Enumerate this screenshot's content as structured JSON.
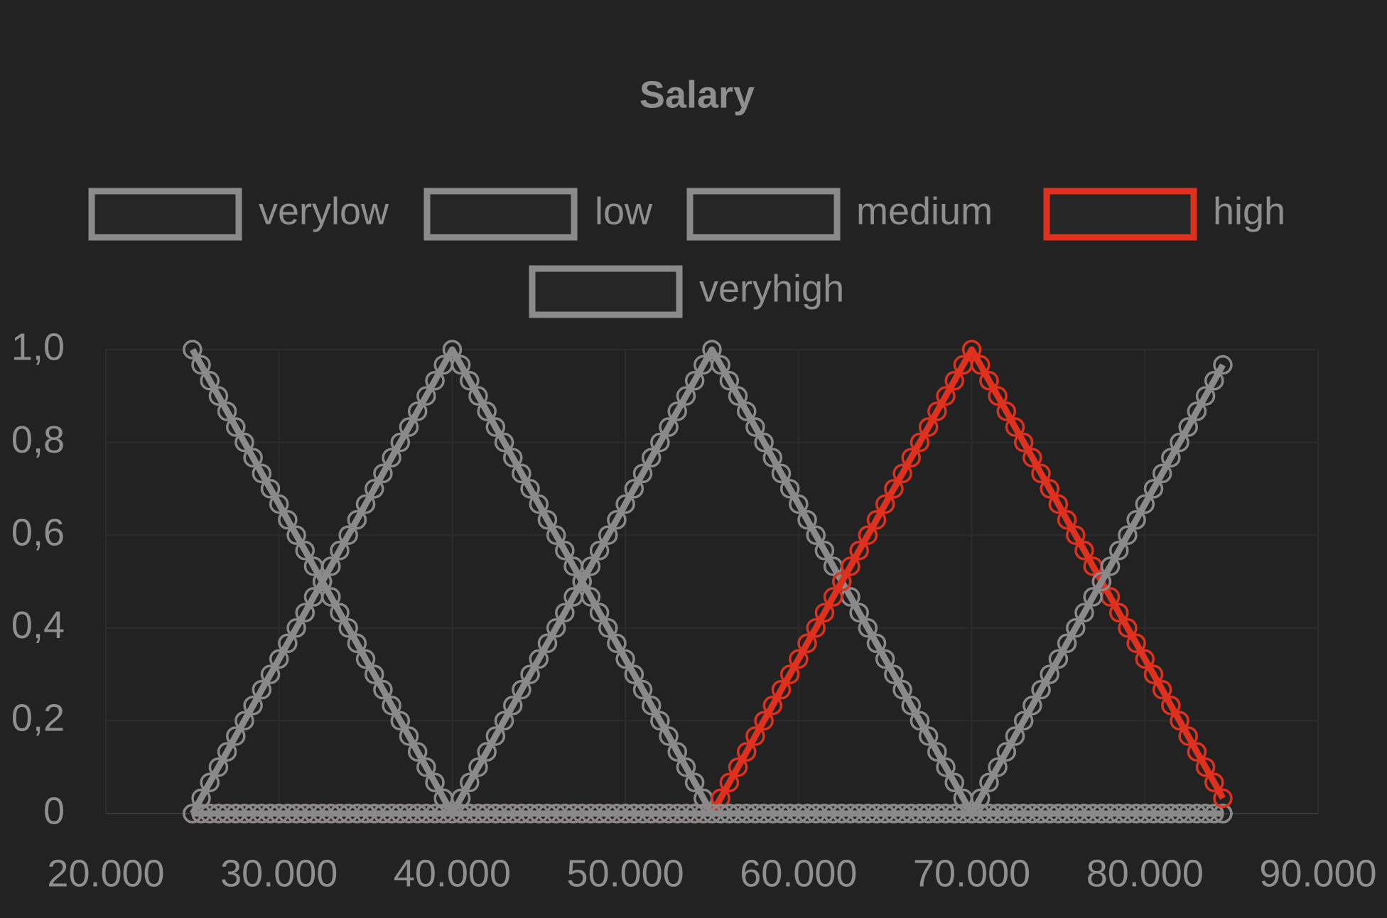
{
  "chart_data": {
    "type": "line",
    "title": "Salary",
    "x": [
      25000,
      25500,
      26000,
      26500,
      27000,
      27500,
      28000,
      28500,
      29000,
      29500,
      30000,
      30500,
      31000,
      31500,
      32000,
      32500,
      33000,
      33500,
      34000,
      34500,
      35000,
      35500,
      36000,
      36500,
      37000,
      37500,
      38000,
      38500,
      39000,
      39500,
      40000,
      40500,
      41000,
      41500,
      42000,
      42500,
      43000,
      43500,
      44000,
      44500,
      45000,
      45500,
      46000,
      46500,
      47000,
      47500,
      48000,
      48500,
      49000,
      49500,
      50000,
      50500,
      51000,
      51500,
      52000,
      52500,
      53000,
      53500,
      54000,
      54500,
      55000,
      55500,
      56000,
      56500,
      57000,
      57500,
      58000,
      58500,
      59000,
      59500,
      60000,
      60500,
      61000,
      61500,
      62000,
      62500,
      63000,
      63500,
      64000,
      64500,
      65000,
      65500,
      66000,
      66500,
      67000,
      67500,
      68000,
      68500,
      69000,
      69500,
      70000,
      70500,
      71000,
      71500,
      72000,
      72500,
      73000,
      73500,
      74000,
      74500,
      75000,
      75500,
      76000,
      76500,
      77000,
      77500,
      78000,
      78500,
      79000,
      79500,
      80000,
      80500,
      81000,
      81500,
      82000,
      82500,
      83000,
      83500,
      84000,
      84500
    ],
    "series": [
      {
        "name": "verylow",
        "color": "#8a8a8a",
        "values": [
          1,
          0.967,
          0.933,
          0.9,
          0.867,
          0.833,
          0.8,
          0.767,
          0.733,
          0.7,
          0.667,
          0.633,
          0.6,
          0.567,
          0.533,
          0.5,
          0.467,
          0.433,
          0.4,
          0.367,
          0.333,
          0.3,
          0.267,
          0.233,
          0.2,
          0.167,
          0.133,
          0.1,
          0.067,
          0.033,
          0,
          0,
          0,
          0,
          0,
          0,
          0,
          0,
          0,
          0,
          0,
          0,
          0,
          0,
          0,
          0,
          0,
          0,
          0,
          0,
          0,
          0,
          0,
          0,
          0,
          0,
          0,
          0,
          0,
          0,
          0,
          0,
          0,
          0,
          0,
          0,
          0,
          0,
          0,
          0,
          0,
          0,
          0,
          0,
          0,
          0,
          0,
          0,
          0,
          0,
          0,
          0,
          0,
          0,
          0,
          0,
          0,
          0,
          0,
          0,
          0,
          0,
          0,
          0,
          0,
          0,
          0,
          0,
          0,
          0,
          0,
          0,
          0,
          0,
          0,
          0,
          0,
          0,
          0,
          0,
          0,
          0,
          0,
          0,
          0,
          0,
          0,
          0,
          0,
          0
        ]
      },
      {
        "name": "low",
        "color": "#8a8a8a",
        "values": [
          0,
          0.033,
          0.067,
          0.1,
          0.133,
          0.167,
          0.2,
          0.233,
          0.267,
          0.3,
          0.333,
          0.367,
          0.4,
          0.433,
          0.467,
          0.5,
          0.533,
          0.567,
          0.6,
          0.633,
          0.667,
          0.7,
          0.733,
          0.767,
          0.8,
          0.833,
          0.867,
          0.9,
          0.933,
          0.967,
          1,
          0.967,
          0.933,
          0.9,
          0.867,
          0.833,
          0.8,
          0.767,
          0.733,
          0.7,
          0.667,
          0.633,
          0.6,
          0.567,
          0.533,
          0.5,
          0.467,
          0.433,
          0.4,
          0.367,
          0.333,
          0.3,
          0.267,
          0.233,
          0.2,
          0.167,
          0.133,
          0.1,
          0.067,
          0.033,
          0,
          0,
          0,
          0,
          0,
          0,
          0,
          0,
          0,
          0,
          0,
          0,
          0,
          0,
          0,
          0,
          0,
          0,
          0,
          0,
          0,
          0,
          0,
          0,
          0,
          0,
          0,
          0,
          0,
          0,
          0,
          0,
          0,
          0,
          0,
          0,
          0,
          0,
          0,
          0,
          0,
          0,
          0,
          0,
          0,
          0,
          0,
          0,
          0,
          0,
          0,
          0,
          0,
          0,
          0,
          0,
          0,
          0,
          0,
          0
        ]
      },
      {
        "name": "medium",
        "color": "#8a8a8a",
        "values": [
          0,
          0,
          0,
          0,
          0,
          0,
          0,
          0,
          0,
          0,
          0,
          0,
          0,
          0,
          0,
          0,
          0,
          0,
          0,
          0,
          0,
          0,
          0,
          0,
          0,
          0,
          0,
          0,
          0,
          0,
          0,
          0.033,
          0.067,
          0.1,
          0.133,
          0.167,
          0.2,
          0.233,
          0.267,
          0.3,
          0.333,
          0.367,
          0.4,
          0.433,
          0.467,
          0.5,
          0.533,
          0.567,
          0.6,
          0.633,
          0.667,
          0.7,
          0.733,
          0.767,
          0.8,
          0.833,
          0.867,
          0.9,
          0.933,
          0.967,
          1,
          0.967,
          0.933,
          0.9,
          0.867,
          0.833,
          0.8,
          0.767,
          0.733,
          0.7,
          0.667,
          0.633,
          0.6,
          0.567,
          0.533,
          0.5,
          0.467,
          0.433,
          0.4,
          0.367,
          0.333,
          0.3,
          0.267,
          0.233,
          0.2,
          0.167,
          0.133,
          0.1,
          0.067,
          0.033,
          0,
          0,
          0,
          0,
          0,
          0,
          0,
          0,
          0,
          0,
          0,
          0,
          0,
          0,
          0,
          0,
          0,
          0,
          0,
          0,
          0,
          0,
          0,
          0,
          0,
          0,
          0,
          0,
          0,
          0
        ]
      },
      {
        "name": "high",
        "color": "#e0301e",
        "values": [
          0,
          0,
          0,
          0,
          0,
          0,
          0,
          0,
          0,
          0,
          0,
          0,
          0,
          0,
          0,
          0,
          0,
          0,
          0,
          0,
          0,
          0,
          0,
          0,
          0,
          0,
          0,
          0,
          0,
          0,
          0,
          0,
          0,
          0,
          0,
          0,
          0,
          0,
          0,
          0,
          0,
          0,
          0,
          0,
          0,
          0,
          0,
          0,
          0,
          0,
          0,
          0,
          0,
          0,
          0,
          0,
          0,
          0,
          0,
          0,
          0,
          0.033,
          0.067,
          0.1,
          0.133,
          0.167,
          0.2,
          0.233,
          0.267,
          0.3,
          0.333,
          0.367,
          0.4,
          0.433,
          0.467,
          0.5,
          0.533,
          0.567,
          0.6,
          0.633,
          0.667,
          0.7,
          0.733,
          0.767,
          0.8,
          0.833,
          0.867,
          0.9,
          0.933,
          0.967,
          1,
          0.967,
          0.933,
          0.9,
          0.867,
          0.833,
          0.8,
          0.767,
          0.733,
          0.7,
          0.667,
          0.633,
          0.6,
          0.567,
          0.533,
          0.5,
          0.467,
          0.433,
          0.4,
          0.367,
          0.333,
          0.3,
          0.267,
          0.233,
          0.2,
          0.167,
          0.133,
          0.1,
          0.067,
          0.033
        ]
      },
      {
        "name": "veryhigh",
        "color": "#8a8a8a",
        "values": [
          0,
          0,
          0,
          0,
          0,
          0,
          0,
          0,
          0,
          0,
          0,
          0,
          0,
          0,
          0,
          0,
          0,
          0,
          0,
          0,
          0,
          0,
          0,
          0,
          0,
          0,
          0,
          0,
          0,
          0,
          0,
          0,
          0,
          0,
          0,
          0,
          0,
          0,
          0,
          0,
          0,
          0,
          0,
          0,
          0,
          0,
          0,
          0,
          0,
          0,
          0,
          0,
          0,
          0,
          0,
          0,
          0,
          0,
          0,
          0,
          0,
          0,
          0,
          0,
          0,
          0,
          0,
          0,
          0,
          0,
          0,
          0,
          0,
          0,
          0,
          0,
          0,
          0,
          0,
          0,
          0,
          0,
          0,
          0,
          0,
          0,
          0,
          0,
          0,
          0,
          0,
          0.033,
          0.067,
          0.1,
          0.133,
          0.167,
          0.2,
          0.233,
          0.267,
          0.3,
          0.333,
          0.367,
          0.4,
          0.433,
          0.467,
          0.5,
          0.533,
          0.567,
          0.6,
          0.633,
          0.667,
          0.7,
          0.733,
          0.767,
          0.8,
          0.833,
          0.867,
          0.9,
          0.933,
          0.967
        ]
      }
    ],
    "xlim": [
      20000,
      90000
    ],
    "xticks": [
      {
        "value": 20000,
        "label": "20.000"
      },
      {
        "value": 30000,
        "label": "30.000"
      },
      {
        "value": 40000,
        "label": "40.000"
      },
      {
        "value": 50000,
        "label": "50.000"
      },
      {
        "value": 60000,
        "label": "60.000"
      },
      {
        "value": 70000,
        "label": "70.000"
      },
      {
        "value": 80000,
        "label": "80.000"
      },
      {
        "value": 90000,
        "label": "90.000"
      }
    ],
    "ylim": [
      0,
      1
    ],
    "yticks": [
      0,
      {
        "value": 0.2,
        "label": "0,2"
      },
      {
        "value": 0.4,
        "label": "0,4"
      },
      {
        "value": 0.6,
        "label": "0,6"
      },
      {
        "value": 0.8,
        "label": "0,8"
      },
      {
        "value": 1,
        "label": "1,0"
      }
    ],
    "grid": true,
    "legend": "top"
  }
}
